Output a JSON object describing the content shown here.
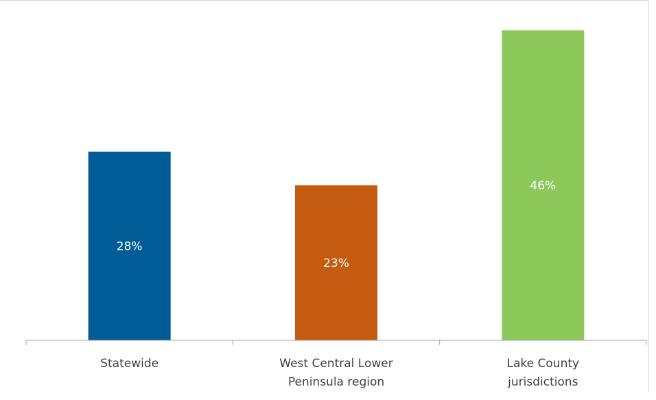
{
  "chart_data": {
    "type": "bar",
    "title": "",
    "xlabel": "",
    "ylabel": "",
    "ylim": [
      0,
      50
    ],
    "grid": false,
    "legend": "none",
    "categories": [
      [
        "Statewide"
      ],
      [
        "West Central Lower",
        "Peninsula region"
      ],
      [
        "Lake County",
        "jurisdictions"
      ]
    ],
    "values": [
      28,
      23,
      46
    ],
    "data_labels": [
      "28%",
      "23%",
      "46%"
    ],
    "colors": [
      "#005c97",
      "#c55a11",
      "#8cc85a"
    ]
  }
}
